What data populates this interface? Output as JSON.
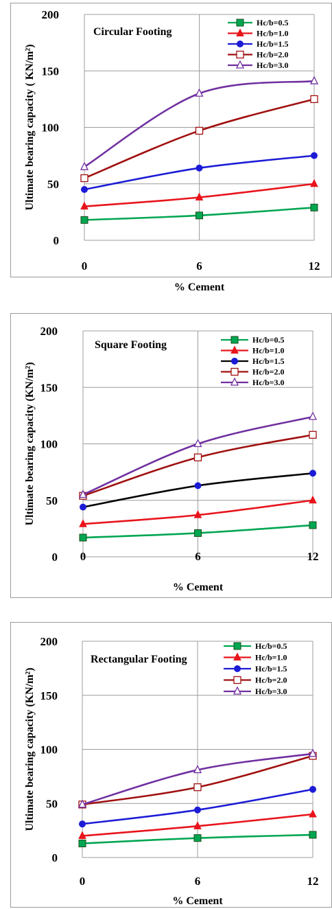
{
  "chart_data": [
    {
      "type": "line",
      "title": "Circular Footing",
      "xlabel": "% Cement",
      "ylabel": "Ultimate bearing capacity ( KN/m²)",
      "x": [
        0,
        6,
        12
      ],
      "x_tick_labels": [
        "0",
        "6",
        "12"
      ],
      "y_tick_labels": [
        "0",
        "50",
        "100",
        "150",
        "200"
      ],
      "ylim": [
        0,
        200
      ],
      "grid": "vertical lines at each x, horizontal lines at y ticks",
      "legend_position": "top-right",
      "series": [
        {
          "name": "Hc/b=0.5",
          "values": [
            18,
            22,
            29
          ],
          "color": "#00a651",
          "marker": "square-filled"
        },
        {
          "name": "Hc/b=1.0",
          "values": [
            30,
            38,
            50
          ],
          "color": "#e8141c",
          "marker": "triangle-filled"
        },
        {
          "name": "Hc/b=1.5",
          "values": [
            45,
            64,
            75
          ],
          "color": "#1c1cd6",
          "marker": "circle-filled"
        },
        {
          "name": "Hc/b=2.0",
          "values": [
            55,
            97,
            125
          ],
          "color": "#a01010",
          "marker": "square-open"
        },
        {
          "name": "Hc/b=3.0",
          "values": [
            65,
            130,
            141
          ],
          "color": "#7030a0",
          "marker": "triangle-open"
        }
      ]
    },
    {
      "type": "line",
      "title": "Square Footing",
      "xlabel": "% Cement",
      "ylabel": "Ultimate bearing capacity (KN/m²)",
      "x": [
        0,
        6,
        12
      ],
      "x_tick_labels": [
        "0",
        "6",
        "12"
      ],
      "y_tick_labels": [
        "0",
        "50",
        "100",
        "150",
        "200"
      ],
      "ylim": [
        0,
        200
      ],
      "grid": "vertical lines at each x, horizontal lines at y ticks",
      "legend_position": "top-right",
      "series": [
        {
          "name": "Hc/b=0.5",
          "values": [
            17,
            21,
            28
          ],
          "color": "#00a651",
          "marker": "square-filled"
        },
        {
          "name": "Hc/b=1.0",
          "values": [
            29,
            37,
            50
          ],
          "color": "#e8141c",
          "marker": "triangle-filled"
        },
        {
          "name": "Hc/b=1.5",
          "values": [
            44,
            63,
            74
          ],
          "color": "#000000",
          "marker": "circle-filled",
          "marker_color": "#1c1cd6"
        },
        {
          "name": "Hc/b=2.0",
          "values": [
            54,
            88,
            108
          ],
          "color": "#a01010",
          "marker": "square-open"
        },
        {
          "name": "Hc/b=3.0",
          "values": [
            55,
            100,
            124
          ],
          "color": "#7030a0",
          "marker": "triangle-open"
        }
      ]
    },
    {
      "type": "line",
      "title": "Rectangular Footing",
      "xlabel": "% Cement",
      "ylabel": "Ultimate bearing capacity (KN/m²)",
      "x": [
        0,
        6,
        12
      ],
      "x_tick_labels": [
        "0",
        "6",
        "12"
      ],
      "y_tick_labels": [
        "0",
        "50",
        "100",
        "150",
        "200"
      ],
      "ylim": [
        0,
        200
      ],
      "grid": "vertical lines at each x, horizontal lines at y ticks",
      "legend_position": "top-right",
      "series": [
        {
          "name": "Hc/b=0.5",
          "values": [
            13,
            18,
            21
          ],
          "color": "#00a651",
          "marker": "square-filled"
        },
        {
          "name": "Hc/b=1.0",
          "values": [
            20,
            29,
            40
          ],
          "color": "#e8141c",
          "marker": "triangle-filled"
        },
        {
          "name": "Hc/b=1.5",
          "values": [
            31,
            44,
            63
          ],
          "color": "#1c1cd6",
          "marker": "circle-filled"
        },
        {
          "name": "Hc/b=2.0",
          "values": [
            49,
            65,
            94
          ],
          "color": "#a01010",
          "marker": "square-open"
        },
        {
          "name": "Hc/b=3.0",
          "values": [
            49,
            81,
            96
          ],
          "color": "#7030a0",
          "marker": "triangle-open"
        }
      ]
    }
  ]
}
